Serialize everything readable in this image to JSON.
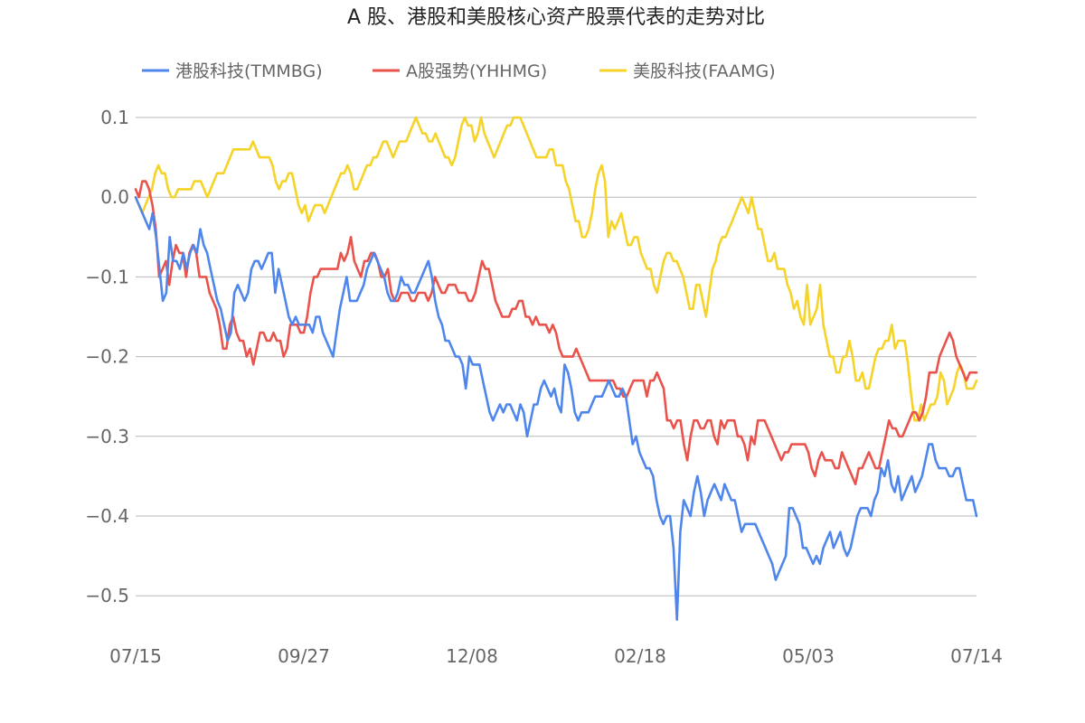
{
  "chart_data": {
    "type": "line",
    "title": "A 股、港股和美股核心资产股票代表的走势对比",
    "xlabel": "",
    "ylabel": "",
    "x_ticks": [
      "07/15",
      "09/27",
      "12/08",
      "02/18",
      "05/03",
      "07/14"
    ],
    "y_ticks": [
      0.1,
      0.0,
      -0.1,
      -0.2,
      -0.3,
      -0.4,
      -0.5
    ],
    "y_tick_labels": [
      "0.1",
      "0.0",
      "−0.1",
      "−0.2",
      "−0.3",
      "−0.4",
      "−0.5"
    ],
    "ylim": [
      -0.55,
      0.1
    ],
    "grid": true,
    "legend_position": "top",
    "series": [
      {
        "name": "港股科技(TMMBG)",
        "color": "#4f86ec",
        "values": [
          0.0,
          -0.01,
          -0.02,
          -0.03,
          -0.04,
          -0.02,
          -0.05,
          -0.09,
          -0.13,
          -0.12,
          -0.05,
          -0.08,
          -0.08,
          -0.09,
          -0.07,
          -0.09,
          -0.07,
          -0.06,
          -0.07,
          -0.04,
          -0.06,
          -0.07,
          -0.09,
          -0.11,
          -0.13,
          -0.14,
          -0.16,
          -0.18,
          -0.17,
          -0.12,
          -0.11,
          -0.12,
          -0.13,
          -0.12,
          -0.09,
          -0.08,
          -0.08,
          -0.09,
          -0.08,
          -0.07,
          -0.07,
          -0.12,
          -0.09,
          -0.11,
          -0.13,
          -0.15,
          -0.16,
          -0.15,
          -0.16,
          -0.16,
          -0.16,
          -0.16,
          -0.17,
          -0.15,
          -0.15,
          -0.17,
          -0.18,
          -0.19,
          -0.2,
          -0.17,
          -0.14,
          -0.12,
          -0.1,
          -0.13,
          -0.13,
          -0.13,
          -0.12,
          -0.11,
          -0.09,
          -0.08,
          -0.07,
          -0.08,
          -0.09,
          -0.1,
          -0.12,
          -0.13,
          -0.13,
          -0.12,
          -0.1,
          -0.11,
          -0.11,
          -0.12,
          -0.12,
          -0.11,
          -0.1,
          -0.09,
          -0.08,
          -0.1,
          -0.13,
          -0.15,
          -0.16,
          -0.18,
          -0.18,
          -0.19,
          -0.2,
          -0.2,
          -0.21,
          -0.24,
          -0.2,
          -0.21,
          -0.21,
          -0.21,
          -0.23,
          -0.25,
          -0.27,
          -0.28,
          -0.27,
          -0.26,
          -0.27,
          -0.26,
          -0.26,
          -0.27,
          -0.28,
          -0.26,
          -0.27,
          -0.3,
          -0.28,
          -0.26,
          -0.26,
          -0.24,
          -0.23,
          -0.24,
          -0.25,
          -0.24,
          -0.26,
          -0.27,
          -0.21,
          -0.22,
          -0.24,
          -0.27,
          -0.28,
          -0.27,
          -0.27,
          -0.27,
          -0.26,
          -0.25,
          -0.25,
          -0.25,
          -0.24,
          -0.23,
          -0.24,
          -0.25,
          -0.25,
          -0.24,
          -0.25,
          -0.28,
          -0.31,
          -0.3,
          -0.32,
          -0.33,
          -0.34,
          -0.34,
          -0.35,
          -0.38,
          -0.4,
          -0.41,
          -0.4,
          -0.4,
          -0.44,
          -0.53,
          -0.42,
          -0.38,
          -0.39,
          -0.4,
          -0.37,
          -0.35,
          -0.37,
          -0.4,
          -0.38,
          -0.37,
          -0.36,
          -0.37,
          -0.38,
          -0.36,
          -0.37,
          -0.38,
          -0.38,
          -0.4,
          -0.42,
          -0.41,
          -0.41,
          -0.41,
          -0.41,
          -0.42,
          -0.43,
          -0.44,
          -0.45,
          -0.46,
          -0.48,
          -0.47,
          -0.46,
          -0.45,
          -0.39,
          -0.39,
          -0.4,
          -0.41,
          -0.44,
          -0.44,
          -0.45,
          -0.46,
          -0.45,
          -0.46,
          -0.44,
          -0.43,
          -0.42,
          -0.44,
          -0.43,
          -0.42,
          -0.44,
          -0.45,
          -0.44,
          -0.42,
          -0.4,
          -0.39,
          -0.39,
          -0.39,
          -0.4,
          -0.38,
          -0.37,
          -0.34,
          -0.35,
          -0.33,
          -0.36,
          -0.37,
          -0.35,
          -0.38,
          -0.37,
          -0.36,
          -0.35,
          -0.37,
          -0.36,
          -0.35,
          -0.33,
          -0.31,
          -0.31,
          -0.33,
          -0.34,
          -0.34,
          -0.34,
          -0.35,
          -0.35,
          -0.34,
          -0.34,
          -0.36,
          -0.38,
          -0.38,
          -0.38,
          -0.4
        ]
      },
      {
        "name": "A股强势(YHHMG)",
        "color": "#e9534c",
        "values": [
          0.01,
          0.0,
          0.02,
          0.02,
          0.01,
          -0.01,
          -0.04,
          -0.1,
          -0.09,
          -0.08,
          -0.11,
          -0.08,
          -0.06,
          -0.07,
          -0.07,
          -0.1,
          -0.07,
          -0.06,
          -0.07,
          -0.1,
          -0.1,
          -0.1,
          -0.12,
          -0.13,
          -0.14,
          -0.16,
          -0.19,
          -0.19,
          -0.16,
          -0.15,
          -0.17,
          -0.18,
          -0.18,
          -0.2,
          -0.19,
          -0.21,
          -0.19,
          -0.17,
          -0.17,
          -0.18,
          -0.18,
          -0.17,
          -0.18,
          -0.18,
          -0.2,
          -0.19,
          -0.16,
          -0.16,
          -0.16,
          -0.17,
          -0.17,
          -0.15,
          -0.12,
          -0.1,
          -0.1,
          -0.09,
          -0.09,
          -0.09,
          -0.09,
          -0.09,
          -0.09,
          -0.07,
          -0.08,
          -0.07,
          -0.05,
          -0.08,
          -0.09,
          -0.1,
          -0.08,
          -0.08,
          -0.07,
          -0.07,
          -0.08,
          -0.1,
          -0.1,
          -0.09,
          -0.12,
          -0.13,
          -0.13,
          -0.12,
          -0.12,
          -0.12,
          -0.13,
          -0.13,
          -0.12,
          -0.12,
          -0.12,
          -0.13,
          -0.12,
          -0.1,
          -0.11,
          -0.12,
          -0.12,
          -0.11,
          -0.11,
          -0.11,
          -0.12,
          -0.12,
          -0.12,
          -0.13,
          -0.13,
          -0.12,
          -0.1,
          -0.08,
          -0.09,
          -0.09,
          -0.11,
          -0.13,
          -0.14,
          -0.15,
          -0.15,
          -0.15,
          -0.14,
          -0.14,
          -0.13,
          -0.13,
          -0.15,
          -0.15,
          -0.16,
          -0.15,
          -0.16,
          -0.16,
          -0.16,
          -0.17,
          -0.16,
          -0.17,
          -0.19,
          -0.2,
          -0.2,
          -0.2,
          -0.2,
          -0.19,
          -0.2,
          -0.21,
          -0.22,
          -0.23,
          -0.23,
          -0.23,
          -0.23,
          -0.23,
          -0.23,
          -0.23,
          -0.23,
          -0.24,
          -0.24,
          -0.25,
          -0.25,
          -0.24,
          -0.23,
          -0.23,
          -0.23,
          -0.23,
          -0.25,
          -0.23,
          -0.23,
          -0.22,
          -0.23,
          -0.24,
          -0.28,
          -0.28,
          -0.29,
          -0.28,
          -0.28,
          -0.31,
          -0.33,
          -0.3,
          -0.28,
          -0.28,
          -0.29,
          -0.29,
          -0.28,
          -0.28,
          -0.3,
          -0.31,
          -0.28,
          -0.29,
          -0.28,
          -0.28,
          -0.28,
          -0.3,
          -0.3,
          -0.31,
          -0.33,
          -0.3,
          -0.31,
          -0.28,
          -0.28,
          -0.28,
          -0.29,
          -0.3,
          -0.31,
          -0.32,
          -0.33,
          -0.32,
          -0.32,
          -0.31,
          -0.31,
          -0.31,
          -0.31,
          -0.31,
          -0.32,
          -0.34,
          -0.35,
          -0.33,
          -0.32,
          -0.33,
          -0.33,
          -0.33,
          -0.34,
          -0.34,
          -0.32,
          -0.33,
          -0.34,
          -0.35,
          -0.36,
          -0.34,
          -0.34,
          -0.33,
          -0.32,
          -0.33,
          -0.34,
          -0.34,
          -0.32,
          -0.3,
          -0.28,
          -0.29,
          -0.29,
          -0.3,
          -0.3,
          -0.29,
          -0.28,
          -0.27,
          -0.27,
          -0.28,
          -0.27,
          -0.25,
          -0.22,
          -0.22,
          -0.22,
          -0.2,
          -0.19,
          -0.18,
          -0.17,
          -0.18,
          -0.2,
          -0.21,
          -0.22,
          -0.23,
          -0.22,
          -0.22,
          -0.22
        ]
      },
      {
        "name": "美股科技(FAAMG)",
        "color": "#f6d328",
        "values": [
          0.0,
          -0.01,
          -0.02,
          -0.01,
          0.0,
          0.01,
          0.03,
          0.04,
          0.03,
          0.03,
          0.01,
          0.0,
          0.0,
          0.01,
          0.01,
          0.01,
          0.01,
          0.01,
          0.02,
          0.02,
          0.02,
          0.01,
          0.0,
          0.01,
          0.02,
          0.03,
          0.03,
          0.03,
          0.04,
          0.05,
          0.06,
          0.06,
          0.06,
          0.06,
          0.06,
          0.06,
          0.07,
          0.06,
          0.05,
          0.05,
          0.05,
          0.05,
          0.04,
          0.02,
          0.01,
          0.02,
          0.02,
          0.03,
          0.03,
          0.01,
          -0.01,
          -0.02,
          -0.01,
          -0.03,
          -0.02,
          -0.01,
          -0.01,
          -0.01,
          -0.02,
          -0.01,
          0.0,
          0.01,
          0.02,
          0.03,
          0.03,
          0.04,
          0.03,
          0.01,
          0.01,
          0.02,
          0.03,
          0.04,
          0.04,
          0.05,
          0.05,
          0.06,
          0.07,
          0.07,
          0.06,
          0.05,
          0.06,
          0.07,
          0.07,
          0.07,
          0.08,
          0.09,
          0.1,
          0.09,
          0.08,
          0.08,
          0.07,
          0.07,
          0.08,
          0.07,
          0.06,
          0.05,
          0.05,
          0.04,
          0.05,
          0.07,
          0.09,
          0.1,
          0.09,
          0.09,
          0.07,
          0.08,
          0.1,
          0.08,
          0.07,
          0.06,
          0.05,
          0.06,
          0.07,
          0.08,
          0.09,
          0.09,
          0.1,
          0.1,
          0.1,
          0.09,
          0.08,
          0.07,
          0.06,
          0.05,
          0.05,
          0.05,
          0.05,
          0.06,
          0.06,
          0.04,
          0.04,
          0.04,
          0.02,
          0.01,
          -0.01,
          -0.03,
          -0.03,
          -0.05,
          -0.05,
          -0.04,
          -0.02,
          0.01,
          0.03,
          0.04,
          0.02,
          -0.05,
          -0.03,
          -0.04,
          -0.03,
          -0.02,
          -0.04,
          -0.06,
          -0.06,
          -0.05,
          -0.05,
          -0.07,
          -0.08,
          -0.09,
          -0.09,
          -0.11,
          -0.12,
          -0.1,
          -0.08,
          -0.07,
          -0.07,
          -0.08,
          -0.08,
          -0.09,
          -0.1,
          -0.12,
          -0.14,
          -0.14,
          -0.11,
          -0.11,
          -0.13,
          -0.15,
          -0.12,
          -0.09,
          -0.08,
          -0.06,
          -0.05,
          -0.05,
          -0.04,
          -0.03,
          -0.02,
          -0.01,
          0.0,
          -0.01,
          -0.02,
          0.0,
          -0.02,
          -0.04,
          -0.04,
          -0.06,
          -0.08,
          -0.08,
          -0.07,
          -0.09,
          -0.09,
          -0.09,
          -0.11,
          -0.12,
          -0.14,
          -0.13,
          -0.15,
          -0.16,
          -0.11,
          -0.16,
          -0.15,
          -0.14,
          -0.11,
          -0.16,
          -0.18,
          -0.2,
          -0.2,
          -0.22,
          -0.22,
          -0.2,
          -0.2,
          -0.18,
          -0.2,
          -0.23,
          -0.23,
          -0.22,
          -0.24,
          -0.24,
          -0.22,
          -0.2,
          -0.19,
          -0.19,
          -0.18,
          -0.18,
          -0.16,
          -0.19,
          -0.18,
          -0.18,
          -0.18,
          -0.21,
          -0.25,
          -0.28,
          -0.28,
          -0.26,
          -0.28,
          -0.27,
          -0.26,
          -0.26,
          -0.25,
          -0.22,
          -0.23,
          -0.26,
          -0.25,
          -0.24,
          -0.22,
          -0.21,
          -0.22,
          -0.24,
          -0.24,
          -0.24,
          -0.23
        ]
      }
    ]
  }
}
